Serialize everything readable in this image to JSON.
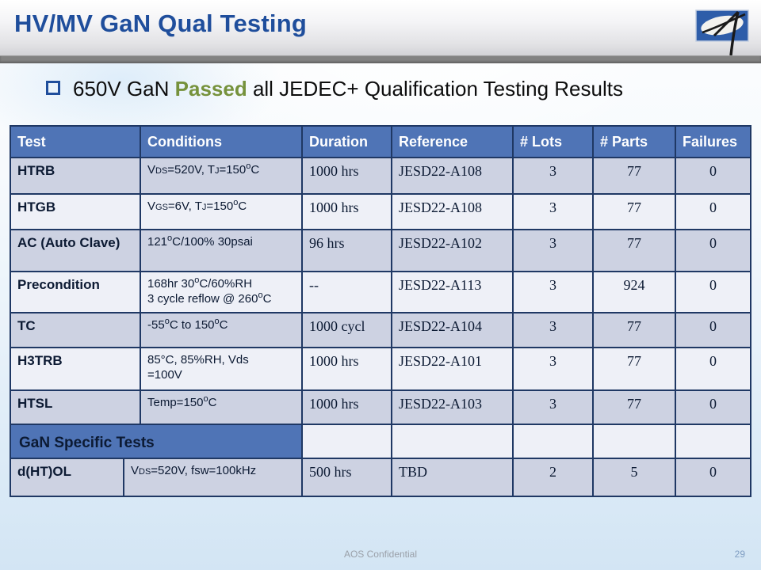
{
  "header": {
    "title": "HV/MV GaN Qual Testing",
    "logo": "aos-logo"
  },
  "bullet": {
    "prefix": "650V GaN ",
    "highlight": "Passed",
    "suffix": " all JEDEC+ Qualification Testing Results"
  },
  "colors": {
    "title_blue": "#1F4E9C",
    "passed_green": "#76923C",
    "table_header_blue": "#4F74B6",
    "table_border_navy": "#1F3864",
    "row_shaded": "#CDD2E2",
    "row_light": "#EEF0F7",
    "divider_gray": "#828282",
    "logo_blue": "#2E5DA9"
  },
  "table": {
    "columns": [
      "Test",
      "Conditions",
      "Duration",
      "Reference",
      "# Lots",
      "# Parts",
      "Failures"
    ],
    "rows": [
      {
        "test": "HTRB",
        "conditions": [
          {
            "t": "V"
          },
          {
            "sub": "DS"
          },
          {
            "t": "=520V, T"
          },
          {
            "sub": "J"
          },
          {
            "t": "=150"
          },
          {
            "sup": "o"
          },
          {
            "t": "C"
          }
        ],
        "duration": "1000 hrs",
        "reference": "JESD22-A108",
        "lots": "3",
        "parts": "77",
        "failures": "0"
      },
      {
        "test": "HTGB",
        "conditions": [
          {
            "t": "V"
          },
          {
            "sub": "GS"
          },
          {
            "t": "=6V, T"
          },
          {
            "sub": "J"
          },
          {
            "t": "=150"
          },
          {
            "sup": "o"
          },
          {
            "t": "C"
          }
        ],
        "duration": "1000 hrs",
        "reference": "JESD22-A108",
        "lots": "3",
        "parts": "77",
        "failures": "0"
      },
      {
        "test": "AC (Auto Clave)",
        "conditions": [
          {
            "t": "121"
          },
          {
            "sup": "o"
          },
          {
            "t": "C/100% 30psai"
          }
        ],
        "duration": "96 hrs",
        "reference": "JESD22-A102",
        "lots": "3",
        "parts": "77",
        "failures": "0"
      },
      {
        "test": "Precondition",
        "conditions": [
          {
            "t": "168hr 30"
          },
          {
            "sup": "o"
          },
          {
            "t": "C/60%RH"
          },
          {
            "br": true
          },
          {
            "t": "3 cycle reflow @ 260"
          },
          {
            "sup": "o"
          },
          {
            "t": "C"
          }
        ],
        "duration": "--",
        "reference": "JESD22-A113",
        "lots": "3",
        "parts": "924",
        "failures": "0"
      },
      {
        "test": "TC",
        "conditions": [
          {
            "t": "-55"
          },
          {
            "sup": "o"
          },
          {
            "t": "C to 150"
          },
          {
            "sup": "o"
          },
          {
            "t": "C"
          }
        ],
        "duration": "1000 cycl",
        "reference": "JESD22-A104",
        "lots": "3",
        "parts": "77",
        "failures": "0"
      },
      {
        "test": "H3TRB",
        "conditions": [
          {
            "t": "85°C, 85%RH, Vds"
          },
          {
            "br": true
          },
          {
            "t": "=100V"
          }
        ],
        "duration": "1000 hrs",
        "reference": "JESD22-A101",
        "lots": "3",
        "parts": "77",
        "failures": "0"
      },
      {
        "test": "HTSL",
        "conditions": [
          {
            "t": "Temp=150"
          },
          {
            "sup": "o"
          },
          {
            "t": "C"
          }
        ],
        "duration": "1000 hrs",
        "reference": "JESD22-A103",
        "lots": "3",
        "parts": "77",
        "failures": "0"
      }
    ],
    "section_header": "GaN Specific Tests",
    "section_rows": [
      {
        "test": "d(HT)OL",
        "conditions": [
          {
            "t": "V"
          },
          {
            "sub": "DS"
          },
          {
            "t": "=520V, fsw=100kHz"
          }
        ],
        "duration": "500 hrs",
        "reference": "TBD",
        "lots": "2",
        "parts": "5",
        "failures": "0"
      }
    ]
  },
  "footer": {
    "confidential": "AOS Confidential",
    "page": "29"
  }
}
